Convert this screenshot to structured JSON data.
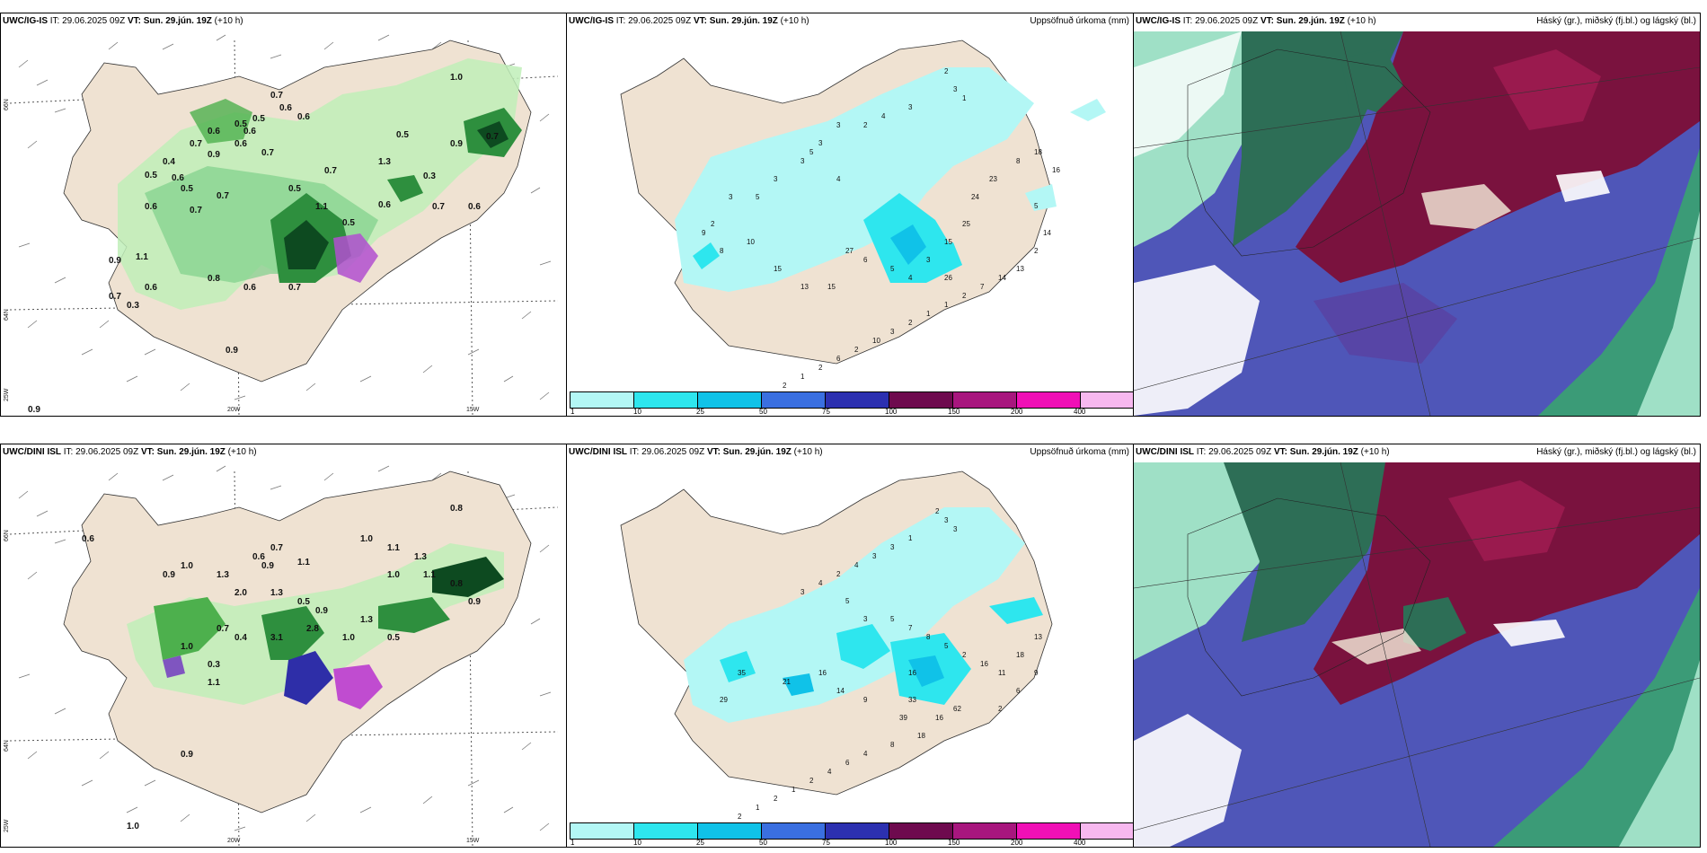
{
  "rows": [
    {
      "model": "UWC/IG-IS",
      "it_label": "IT:",
      "it_value": "29.06.2025 09Z",
      "vt_label": "VT:",
      "vt_value": "Sun. 29.jún. 19Z",
      "lead": "(+10 h)",
      "lat_labels": [
        "66N",
        "64N",
        "25W"
      ],
      "lon_labels": [
        "20W",
        "15W"
      ],
      "rain_values": [
        "1.0",
        "0.7",
        "0.6",
        "0.5",
        "0.6",
        "0.6",
        "0.7",
        "0.6",
        "0.5",
        "0.6",
        "0.7",
        "0.9",
        "0.4",
        "0.5",
        "0.6",
        "0.5",
        "0.7",
        "0.6",
        "0.7",
        "1.1",
        "0.6",
        "0.5",
        "0.7",
        "0.3",
        "1.3",
        "0.7",
        "0.5",
        "0.5",
        "0.8",
        "0.7",
        "0.6",
        "0.9",
        "1.1",
        "0.6",
        "0.7",
        "0.3",
        "0.9",
        "0.6",
        "0.9",
        "0.7",
        "0.9"
      ],
      "precip_values": [
        "2",
        "3",
        "1",
        "3",
        "4",
        "2",
        "3",
        "3",
        "5",
        "3",
        "4",
        "3",
        "5",
        "3",
        "2",
        "9",
        "8",
        "10",
        "15",
        "13",
        "15",
        "6",
        "27",
        "5",
        "4",
        "3",
        "15",
        "25",
        "26",
        "24",
        "23",
        "8",
        "18",
        "16",
        "5",
        "14",
        "2",
        "13",
        "14",
        "7",
        "2",
        "1",
        "1",
        "2",
        "3",
        "10",
        "2",
        "6",
        "2",
        "1",
        "2"
      ]
    },
    {
      "model": "UWC/DINI ISL",
      "it_label": "IT:",
      "it_value": "29.06.2025 09Z",
      "vt_label": "VT:",
      "vt_value": "Sun. 29.jún. 19Z",
      "lead": "(+10 h)",
      "lat_labels": [
        "66N",
        "64N",
        "25W"
      ],
      "lon_labels": [
        "20W",
        "15W"
      ],
      "rain_values": [
        "0.8",
        "1.0",
        "1.1",
        "1.3",
        "0.7",
        "0.6",
        "0.9",
        "1.1",
        "1.0",
        "0.9",
        "1.3",
        "2.0",
        "1.3",
        "0.5",
        "0.9",
        "1.0",
        "1.1",
        "0.8",
        "0.9",
        "1.3",
        "1.0",
        "0.5",
        "0.7",
        "1.0",
        "0.3",
        "3.2",
        "1.0",
        "0.9",
        "0.4",
        "1.1",
        "2.8",
        "0.6",
        "3.1"
      ],
      "precip_values": [
        "2",
        "3",
        "3",
        "1",
        "3",
        "3",
        "4",
        "2",
        "4",
        "3",
        "5",
        "3",
        "5",
        "7",
        "8",
        "5",
        "2",
        "16",
        "11",
        "18",
        "13",
        "9",
        "6",
        "2",
        "16",
        "35",
        "21",
        "29",
        "16",
        "14",
        "9",
        "33",
        "39",
        "16",
        "62",
        "18",
        "8",
        "4",
        "6",
        "4",
        "2",
        "1",
        "2",
        "1",
        "2",
        "5"
      ]
    }
  ],
  "precip_title": "Uppsöfnuð úrkoma (mm)",
  "cloud_title": "Háský (gr.), miðský (fj.bl.) og lágský (bl.)",
  "colorbar": {
    "colors": [
      "#b3f7f5",
      "#2ee6ee",
      "#10c2e8",
      "#3a6fe0",
      "#2c30b0",
      "#6e0a4e",
      "#a8167e",
      "#f010b6",
      "#f7b8ef"
    ],
    "labels": [
      "1",
      "10",
      "25",
      "50",
      "75",
      "100",
      "150",
      "200",
      "400"
    ]
  },
  "colors": {
    "land": "#efe2d2",
    "rain_light": "#bfefb8",
    "rain_mid": "#4db04d",
    "rain_dark": "#0d4a20",
    "precip_light": "#b3f7f5",
    "cloud_high": "#4f56b8",
    "cloud_mid": "#7a123e",
    "cloud_low": "#3b9b77"
  }
}
